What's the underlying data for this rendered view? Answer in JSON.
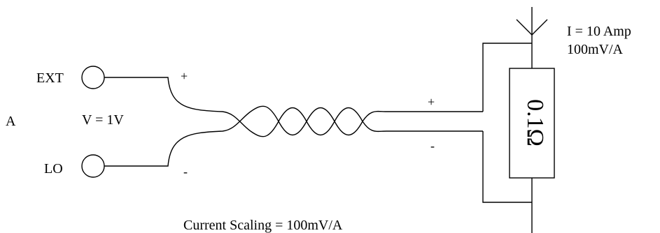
{
  "diagram": {
    "terminals": {
      "ext_label": "EXT",
      "lo_label": "LO"
    },
    "channel_label": "A",
    "voltage_label": "V = 1V",
    "input_plus": "+",
    "input_minus": "-",
    "shunt_plus": "+",
    "shunt_minus": "-",
    "resistor_label": "0.1Ω",
    "current_label": "I = 10 Amp",
    "scale_label": "100mV/A",
    "footer_label": "Current Scaling = 100mV/A",
    "colors": {
      "line": "#000000",
      "background": "#ffffff"
    }
  }
}
